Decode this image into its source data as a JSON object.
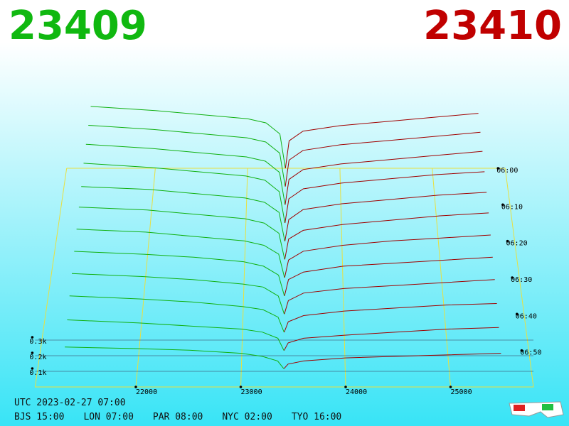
{
  "header": {
    "bid_price": "23409",
    "ask_price": "23410"
  },
  "chart_data": {
    "type": "depth-3d",
    "xlim": [
      21040,
      25790
    ],
    "xticks": [
      22000,
      23000,
      24000,
      25000
    ],
    "tlim": [
      "06:00",
      "07:00"
    ],
    "tticks": [
      "06:00",
      "06:10",
      "06:20",
      "06:30",
      "06:40",
      "06:50"
    ],
    "zticks": [
      {
        "value": 0.1,
        "label": "0.1k"
      },
      {
        "value": 0.2,
        "label": "0.2k"
      },
      {
        "value": 0.3,
        "label": "0.3k"
      }
    ],
    "bid_color": "#10b010",
    "ask_color": "#a00000",
    "bid_prices": [
      23409,
      23350,
      23200,
      23000,
      22500,
      22000,
      21300
    ],
    "ask_prices": [
      23410,
      23450,
      23600,
      24000,
      24500,
      25000,
      25500
    ],
    "slices": [
      {
        "time": "06:00",
        "bids": [
          0,
          0.25,
          0.33,
          0.36,
          0.39,
          0.42,
          0.45
        ],
        "asks": [
          0,
          0.2,
          0.27,
          0.31,
          0.34,
          0.37,
          0.4
        ]
      },
      {
        "time": "06:05",
        "bids": [
          0,
          0.24,
          0.32,
          0.35,
          0.38,
          0.41,
          0.44
        ],
        "asks": [
          0,
          0.19,
          0.26,
          0.3,
          0.33,
          0.36,
          0.39
        ]
      },
      {
        "time": "06:10",
        "bids": [
          0,
          0.23,
          0.31,
          0.34,
          0.37,
          0.4,
          0.43
        ],
        "asks": [
          0,
          0.18,
          0.25,
          0.29,
          0.32,
          0.35,
          0.38
        ]
      },
      {
        "time": "06:15",
        "bids": [
          0,
          0.22,
          0.3,
          0.33,
          0.36,
          0.39,
          0.42
        ],
        "asks": [
          0,
          0.17,
          0.24,
          0.28,
          0.31,
          0.34,
          0.36
        ]
      },
      {
        "time": "06:20",
        "bids": [
          0,
          0.2,
          0.27,
          0.3,
          0.33,
          0.36,
          0.38
        ],
        "asks": [
          0,
          0.15,
          0.22,
          0.26,
          0.29,
          0.32,
          0.34
        ]
      },
      {
        "time": "06:25",
        "bids": [
          0,
          0.18,
          0.25,
          0.28,
          0.31,
          0.34,
          0.36
        ],
        "asks": [
          0,
          0.14,
          0.2,
          0.24,
          0.27,
          0.3,
          0.32
        ]
      },
      {
        "time": "06:30",
        "bids": [
          0,
          0.16,
          0.22,
          0.25,
          0.28,
          0.31,
          0.33
        ],
        "asks": [
          0,
          0.12,
          0.18,
          0.22,
          0.25,
          0.27,
          0.29
        ]
      },
      {
        "time": "06:35",
        "bids": [
          0,
          0.14,
          0.2,
          0.23,
          0.26,
          0.28,
          0.3
        ],
        "asks": [
          0,
          0.11,
          0.16,
          0.2,
          0.22,
          0.24,
          0.26
        ]
      },
      {
        "time": "06:40",
        "bids": [
          0,
          0.12,
          0.18,
          0.2,
          0.23,
          0.25,
          0.27
        ],
        "asks": [
          0,
          0.09,
          0.14,
          0.17,
          0.19,
          0.21,
          0.23
        ]
      },
      {
        "time": "06:45",
        "bids": [
          0,
          0.1,
          0.15,
          0.17,
          0.2,
          0.22,
          0.24
        ],
        "asks": [
          0,
          0.07,
          0.11,
          0.14,
          0.16,
          0.18,
          0.19
        ]
      },
      {
        "time": "06:50",
        "bids": [
          0,
          0.08,
          0.12,
          0.14,
          0.16,
          0.18,
          0.2
        ],
        "asks": [
          0,
          0.05,
          0.08,
          0.1,
          0.12,
          0.14,
          0.15
        ]
      },
      {
        "time": "06:55",
        "bids": [
          0,
          0.05,
          0.08,
          0.1,
          0.12,
          0.13,
          0.14
        ],
        "asks": [
          0,
          0.03,
          0.05,
          0.07,
          0.08,
          0.09,
          0.1
        ]
      }
    ]
  },
  "footer": {
    "utc": "UTC 2023-02-27 07:00",
    "zones": [
      "BJS 15:00",
      "LON 07:00",
      "PAR 08:00",
      "NYC 02:00",
      "TYO 16:00"
    ]
  }
}
